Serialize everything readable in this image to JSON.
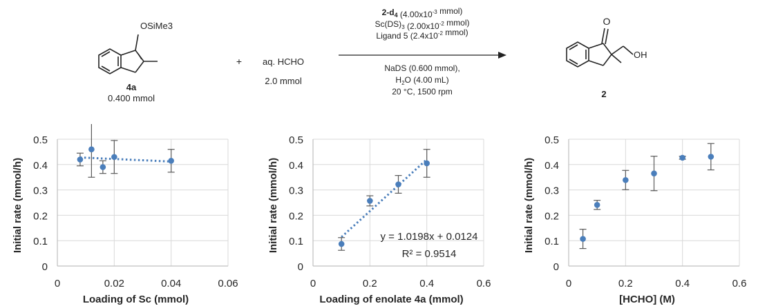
{
  "scheme": {
    "reactant": {
      "substituent": "OSiMe3",
      "label": "4a",
      "amount": "0.400 mmol"
    },
    "plus": "+",
    "reagent": {
      "name": "aq. HCHO",
      "amount": "2.0 mmol"
    },
    "conditions_above": [
      {
        "bold": "2-d4",
        "rest": " (4.00x10-3 mmol)"
      },
      {
        "bold": "",
        "rest": "Sc(DS)3 (2.00x10-2 mmol)"
      },
      {
        "bold": "",
        "rest": "Ligand 5 (2.4x10-2 mmol)"
      }
    ],
    "conditions_below": [
      "NaDS (0.600 mmol),",
      "H2O (4.00 mL)",
      "20 °C, 1500 rpm"
    ],
    "product": {
      "carbonyl": "O",
      "hydroxyl": "OH",
      "label": "2"
    }
  },
  "colors": {
    "marker": "#4a7ebb",
    "trendline": "#4a7ebb",
    "grid": "#d9d9d9",
    "axis": "#bfbfbf",
    "errorbar": "#595959",
    "text": "#262626"
  },
  "chart_data": [
    {
      "type": "scatter",
      "xlabel": "Loading of Sc (mmol)",
      "ylabel": "Initial rate (mmol/h)",
      "xlim": [
        0,
        0.06
      ],
      "ylim": [
        0,
        0.5
      ],
      "xticks": [
        "0",
        "0.02",
        "0.04",
        "0.06"
      ],
      "yticks": [
        "0",
        "0.1",
        "0.2",
        "0.3",
        "0.4",
        "0.5"
      ],
      "grid": true,
      "x": [
        0.008,
        0.012,
        0.016,
        0.02,
        0.04
      ],
      "y": [
        0.42,
        0.46,
        0.39,
        0.43,
        0.415
      ],
      "error": [
        0.025,
        0.11,
        0.025,
        0.065,
        0.045
      ],
      "trendline": {
        "x": [
          0.008,
          0.04
        ],
        "y": [
          0.428,
          0.412
        ]
      },
      "equation": "",
      "r2": ""
    },
    {
      "type": "scatter",
      "xlabel": "Loading of enolate 4a (mmol)",
      "ylabel": "Initial rate (mmol/h)",
      "xlim": [
        0,
        0.6
      ],
      "ylim": [
        0,
        0.5
      ],
      "xticks": [
        "0",
        "0.2",
        "0.4",
        "0.6"
      ],
      "yticks": [
        "0",
        "0.1",
        "0.2",
        "0.3",
        "0.4",
        "0.5"
      ],
      "grid": true,
      "x": [
        0.1,
        0.2,
        0.3,
        0.4
      ],
      "y": [
        0.087,
        0.257,
        0.322,
        0.405
      ],
      "error": [
        0.025,
        0.02,
        0.035,
        0.055
      ],
      "trendline": {
        "x": [
          0.1,
          0.4
        ],
        "y": [
          0.1144,
          0.4203
        ]
      },
      "equation": "y = 1.0198x + 0.0124",
      "r2": "R² = 0.9514"
    },
    {
      "type": "scatter",
      "xlabel": "[HCHO] (M)",
      "ylabel": "Initial rate (mmol/h)",
      "xlim": [
        0,
        0.6
      ],
      "ylim": [
        0,
        0.5
      ],
      "xticks": [
        "0",
        "0.2",
        "0.4",
        "0.6"
      ],
      "yticks": [
        "0",
        "0.1",
        "0.2",
        "0.3",
        "0.4",
        "0.5"
      ],
      "grid": true,
      "x": [
        0.05,
        0.1,
        0.2,
        0.3,
        0.4,
        0.5
      ],
      "y": [
        0.107,
        0.241,
        0.339,
        0.365,
        0.427,
        0.431
      ],
      "error": [
        0.038,
        0.018,
        0.038,
        0.068,
        0.006,
        0.052
      ],
      "trendline": null,
      "equation": "",
      "r2": ""
    }
  ]
}
